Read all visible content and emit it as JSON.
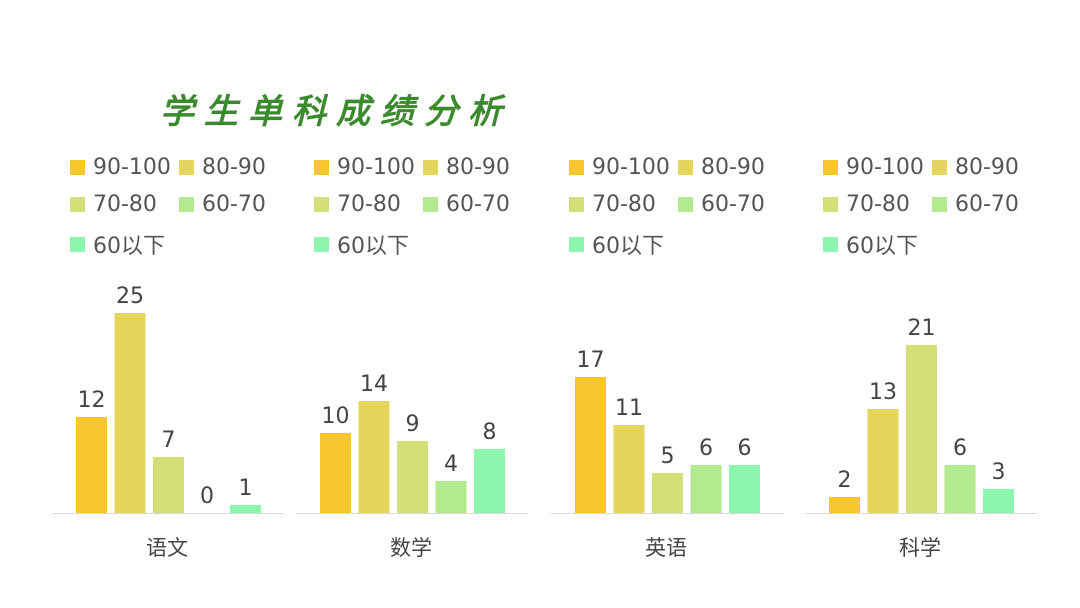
{
  "title": "学生单科成绩分析",
  "colors": [
    "#f8c631",
    "#e6d55b",
    "#d3df77",
    "#b3ea8f",
    "#8cf6af"
  ],
  "chart_data": [
    {
      "type": "bar",
      "categories": [
        "语文"
      ],
      "series": [
        {
          "name": "90-100",
          "values": [
            12
          ]
        },
        {
          "name": "80-90",
          "values": [
            25
          ]
        },
        {
          "name": "70-80",
          "values": [
            7
          ]
        },
        {
          "name": "60-70",
          "values": [
            0
          ]
        },
        {
          "name": "60以下",
          "values": [
            1
          ]
        }
      ],
      "legend": "top",
      "grid": false
    },
    {
      "type": "bar",
      "categories": [
        "数学"
      ],
      "series": [
        {
          "name": "90-100",
          "values": [
            10
          ]
        },
        {
          "name": "80-90",
          "values": [
            14
          ]
        },
        {
          "name": "70-80",
          "values": [
            9
          ]
        },
        {
          "name": "60-70",
          "values": [
            4
          ]
        },
        {
          "name": "60以下",
          "values": [
            8
          ]
        }
      ],
      "legend": "top",
      "grid": false
    },
    {
      "type": "bar",
      "categories": [
        "英语"
      ],
      "series": [
        {
          "name": "90-100",
          "values": [
            17
          ]
        },
        {
          "name": "80-90",
          "values": [
            11
          ]
        },
        {
          "name": "70-80",
          "values": [
            5
          ]
        },
        {
          "name": "60-70",
          "values": [
            6
          ]
        },
        {
          "name": "60以下",
          "values": [
            6
          ]
        }
      ],
      "legend": "top",
      "grid": false
    },
    {
      "type": "bar",
      "categories": [
        "科学"
      ],
      "series": [
        {
          "name": "90-100",
          "values": [
            2
          ]
        },
        {
          "name": "80-90",
          "values": [
            13
          ]
        },
        {
          "name": "70-80",
          "values": [
            21
          ]
        },
        {
          "name": "60-70",
          "values": [
            6
          ]
        },
        {
          "name": "60以下",
          "values": [
            3
          ]
        }
      ],
      "legend": "top",
      "grid": false
    }
  ]
}
